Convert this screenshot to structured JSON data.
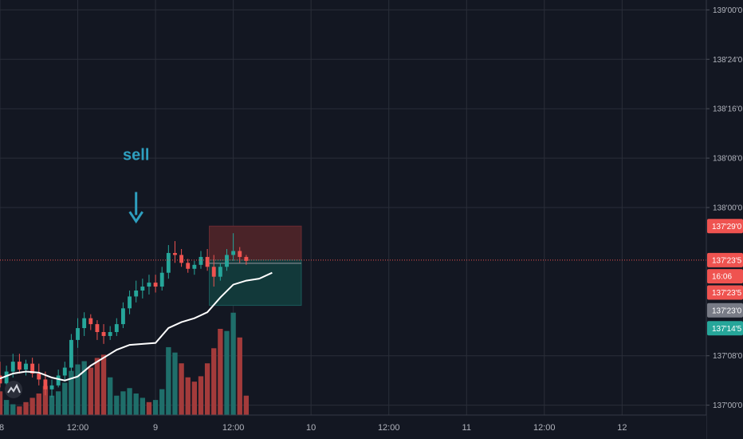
{
  "chart_data": {
    "type": "candlestick",
    "title": "",
    "y_axis": {
      "side": "right",
      "ticks": [
        "139'00'0",
        "138'24'0",
        "138'16'0",
        "138'08'0",
        "138'00'0",
        "137'08'0",
        "137'00'0"
      ],
      "tick_values": [
        139.0,
        138.75,
        138.5,
        138.25,
        138.0,
        137.25,
        137.0
      ],
      "ylim": [
        136.95,
        139.05
      ]
    },
    "x_axis": {
      "ticks": [
        "8",
        "12:00",
        "9",
        "12:00",
        "10",
        "12:00",
        "11",
        "12:00",
        "12"
      ],
      "tick_hours": [
        0,
        12,
        24,
        36,
        48,
        60,
        72,
        84,
        96
      ],
      "xlim_hours": [
        0,
        109
      ]
    },
    "price_tags": [
      {
        "text": "137'29'0",
        "value": 137.906,
        "color": "#ef5350"
      },
      {
        "text": "137'23'5",
        "value": 137.734,
        "color": "#ef5350"
      },
      {
        "text": "16:06",
        "value": 137.652,
        "color": "#ef5350"
      },
      {
        "text": "137'23'5",
        "value": 137.57,
        "color": "#ef5350"
      },
      {
        "text": "137'23'0",
        "value": 137.48,
        "color": "#787b86"
      },
      {
        "text": "137'14'5",
        "value": 137.389,
        "color": "#26a69a"
      }
    ],
    "current_price": 137.734,
    "position": {
      "side": "short",
      "start_hour": 32.3,
      "end_hour": 46.5,
      "stop": 137.906,
      "entry": 137.734,
      "target": 137.505
    },
    "annotation": {
      "text": "sell",
      "x_hour": 21.0,
      "value": 138.24,
      "arrow_to": 137.93
    },
    "moving_average": {
      "color": "#ffffff",
      "points": [
        [
          0,
          137.135
        ],
        [
          2,
          137.16
        ],
        [
          4,
          137.17
        ],
        [
          6,
          137.165
        ],
        [
          8,
          137.14
        ],
        [
          10,
          137.125
        ],
        [
          12,
          137.145
        ],
        [
          14,
          137.2
        ],
        [
          16,
          137.24
        ],
        [
          18,
          137.28
        ],
        [
          20,
          137.305
        ],
        [
          22,
          137.31
        ],
        [
          24,
          137.315
        ],
        [
          26,
          137.39
        ],
        [
          28,
          137.42
        ],
        [
          30,
          137.44
        ],
        [
          32,
          137.47
        ],
        [
          34,
          137.545
        ],
        [
          36,
          137.61
        ],
        [
          38,
          137.63
        ],
        [
          40,
          137.64
        ],
        [
          42,
          137.67
        ]
      ]
    },
    "candles": [
      {
        "t": 0,
        "o": 137.15,
        "h": 137.22,
        "l": 137.09,
        "c": 137.11
      },
      {
        "t": 1,
        "o": 137.11,
        "h": 137.2,
        "l": 137.08,
        "c": 137.17
      },
      {
        "t": 2,
        "o": 137.17,
        "h": 137.26,
        "l": 137.14,
        "c": 137.22
      },
      {
        "t": 3,
        "o": 137.22,
        "h": 137.26,
        "l": 137.16,
        "c": 137.18
      },
      {
        "t": 4,
        "o": 137.18,
        "h": 137.23,
        "l": 137.15,
        "c": 137.21
      },
      {
        "t": 5,
        "o": 137.21,
        "h": 137.24,
        "l": 137.14,
        "c": 137.16
      },
      {
        "t": 6,
        "o": 137.16,
        "h": 137.21,
        "l": 137.1,
        "c": 137.13
      },
      {
        "t": 7,
        "o": 137.13,
        "h": 137.17,
        "l": 137.05,
        "c": 137.08
      },
      {
        "t": 8,
        "o": 137.08,
        "h": 137.13,
        "l": 137.04,
        "c": 137.1
      },
      {
        "t": 9,
        "o": 137.1,
        "h": 137.18,
        "l": 137.09,
        "c": 137.15
      },
      {
        "t": 10,
        "o": 137.15,
        "h": 137.22,
        "l": 137.12,
        "c": 137.19
      },
      {
        "t": 11,
        "o": 137.19,
        "h": 137.36,
        "l": 137.17,
        "c": 137.33
      },
      {
        "t": 12,
        "o": 137.33,
        "h": 137.44,
        "l": 137.29,
        "c": 137.39
      },
      {
        "t": 13,
        "o": 137.39,
        "h": 137.47,
        "l": 137.35,
        "c": 137.44
      },
      {
        "t": 14,
        "o": 137.44,
        "h": 137.46,
        "l": 137.38,
        "c": 137.41
      },
      {
        "t": 15,
        "o": 137.41,
        "h": 137.43,
        "l": 137.33,
        "c": 137.37
      },
      {
        "t": 16,
        "o": 137.37,
        "h": 137.41,
        "l": 137.31,
        "c": 137.35
      },
      {
        "t": 17,
        "o": 137.35,
        "h": 137.4,
        "l": 137.33,
        "c": 137.37
      },
      {
        "t": 18,
        "o": 137.37,
        "h": 137.44,
        "l": 137.35,
        "c": 137.41
      },
      {
        "t": 19,
        "o": 137.41,
        "h": 137.52,
        "l": 137.39,
        "c": 137.49
      },
      {
        "t": 20,
        "o": 137.49,
        "h": 137.58,
        "l": 137.46,
        "c": 137.55
      },
      {
        "t": 21,
        "o": 137.55,
        "h": 137.63,
        "l": 137.52,
        "c": 137.58
      },
      {
        "t": 22,
        "o": 137.58,
        "h": 137.64,
        "l": 137.54,
        "c": 137.6
      },
      {
        "t": 23,
        "o": 137.6,
        "h": 137.66,
        "l": 137.56,
        "c": 137.62
      },
      {
        "t": 24,
        "o": 137.62,
        "h": 137.66,
        "l": 137.57,
        "c": 137.6
      },
      {
        "t": 25,
        "o": 137.6,
        "h": 137.7,
        "l": 137.58,
        "c": 137.67
      },
      {
        "t": 26,
        "o": 137.67,
        "h": 137.81,
        "l": 137.64,
        "c": 137.77
      },
      {
        "t": 27,
        "o": 137.77,
        "h": 137.83,
        "l": 137.72,
        "c": 137.76
      },
      {
        "t": 28,
        "o": 137.76,
        "h": 137.79,
        "l": 137.7,
        "c": 137.72
      },
      {
        "t": 29,
        "o": 137.72,
        "h": 137.74,
        "l": 137.67,
        "c": 137.69
      },
      {
        "t": 30,
        "o": 137.69,
        "h": 137.73,
        "l": 137.66,
        "c": 137.71
      },
      {
        "t": 31,
        "o": 137.71,
        "h": 137.78,
        "l": 137.69,
        "c": 137.75
      },
      {
        "t": 32,
        "o": 137.75,
        "h": 137.79,
        "l": 137.68,
        "c": 137.7
      },
      {
        "t": 33,
        "o": 137.7,
        "h": 137.76,
        "l": 137.6,
        "c": 137.65
      },
      {
        "t": 34,
        "o": 137.65,
        "h": 137.72,
        "l": 137.63,
        "c": 137.7
      },
      {
        "t": 35,
        "o": 137.7,
        "h": 137.79,
        "l": 137.68,
        "c": 137.76
      },
      {
        "t": 36,
        "o": 137.76,
        "h": 137.87,
        "l": 137.73,
        "c": 137.78
      },
      {
        "t": 37,
        "o": 137.78,
        "h": 137.8,
        "l": 137.72,
        "c": 137.75
      },
      {
        "t": 38,
        "o": 137.75,
        "h": 137.76,
        "l": 137.71,
        "c": 137.73
      }
    ],
    "volume": [
      {
        "t": 0,
        "v": 0.22,
        "up": false
      },
      {
        "t": 1,
        "v": 0.14,
        "up": true
      },
      {
        "t": 2,
        "v": 0.1,
        "up": true
      },
      {
        "t": 3,
        "v": 0.08,
        "up": false
      },
      {
        "t": 4,
        "v": 0.12,
        "up": false
      },
      {
        "t": 5,
        "v": 0.16,
        "up": false
      },
      {
        "t": 6,
        "v": 0.2,
        "up": false
      },
      {
        "t": 7,
        "v": 0.27,
        "up": false
      },
      {
        "t": 8,
        "v": 0.18,
        "up": true
      },
      {
        "t": 9,
        "v": 0.22,
        "up": true
      },
      {
        "t": 10,
        "v": 0.3,
        "up": true
      },
      {
        "t": 11,
        "v": 0.41,
        "up": true
      },
      {
        "t": 12,
        "v": 0.47,
        "up": true
      },
      {
        "t": 13,
        "v": 0.5,
        "up": true
      },
      {
        "t": 14,
        "v": 0.44,
        "up": false
      },
      {
        "t": 15,
        "v": 0.53,
        "up": false
      },
      {
        "t": 16,
        "v": 0.56,
        "up": false
      },
      {
        "t": 17,
        "v": 0.35,
        "up": true
      },
      {
        "t": 18,
        "v": 0.18,
        "up": true
      },
      {
        "t": 19,
        "v": 0.22,
        "up": true
      },
      {
        "t": 20,
        "v": 0.25,
        "up": true
      },
      {
        "t": 21,
        "v": 0.2,
        "up": true
      },
      {
        "t": 22,
        "v": 0.16,
        "up": true
      },
      {
        "t": 23,
        "v": 0.12,
        "up": false
      },
      {
        "t": 24,
        "v": 0.14,
        "up": true
      },
      {
        "t": 25,
        "v": 0.24,
        "up": true
      },
      {
        "t": 26,
        "v": 0.63,
        "up": true
      },
      {
        "t": 27,
        "v": 0.58,
        "up": true
      },
      {
        "t": 28,
        "v": 0.48,
        "up": false
      },
      {
        "t": 29,
        "v": 0.35,
        "up": false
      },
      {
        "t": 30,
        "v": 0.31,
        "up": false
      },
      {
        "t": 31,
        "v": 0.36,
        "up": false
      },
      {
        "t": 32,
        "v": 0.48,
        "up": false
      },
      {
        "t": 33,
        "v": 0.62,
        "up": false
      },
      {
        "t": 34,
        "v": 0.8,
        "up": false
      },
      {
        "t": 35,
        "v": 0.78,
        "up": true
      },
      {
        "t": 36,
        "v": 0.95,
        "up": true
      },
      {
        "t": 37,
        "v": 0.72,
        "up": false
      },
      {
        "t": 38,
        "v": 0.18,
        "up": false
      }
    ],
    "colors": {
      "background": "#131722",
      "grid": "#2a2e39",
      "up": "#26a69a",
      "down": "#ef5350",
      "volume_up": "#1f6e6a",
      "volume_down": "#a33b3b",
      "stop_zone": "#4a2328",
      "target_zone": "#12393a"
    }
  }
}
